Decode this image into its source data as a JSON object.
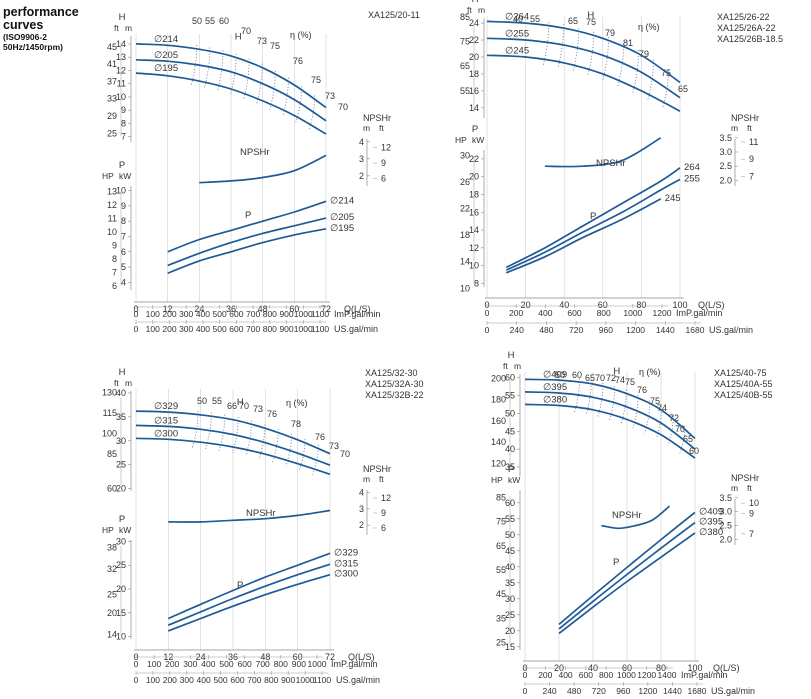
{
  "header": {
    "title_line1": "performance",
    "title_line2": "curves",
    "standard": "(ISO9906-2",
    "speed": "50Hz/1450rpm)"
  },
  "chart_data": [
    {
      "type": "line",
      "models": [
        "XA125/20-11"
      ],
      "x_axis": {
        "label": "Q(L/S)",
        "ticks": [
          "0",
          "12",
          "24",
          "36",
          "48",
          "60",
          "72"
        ],
        "imp_label": "ImP.gal/min",
        "imp_ticks": [
          "0",
          "100",
          "200",
          "300",
          "400",
          "500",
          "600",
          "700",
          "800",
          "900",
          "1000",
          "1100"
        ],
        "us_label": "US.gal/min",
        "us_ticks": [
          "0",
          "100",
          "200",
          "300",
          "400",
          "500",
          "600",
          "700",
          "800",
          "900",
          "1000",
          "1100"
        ]
      },
      "head_axis": {
        "label": "H",
        "unit_m": "m",
        "unit_ft": "ft",
        "m_ticks": [
          "14",
          "13",
          "12",
          "11",
          "10",
          "9",
          "8",
          "7"
        ],
        "ft_ticks": [
          "45",
          "41",
          "37",
          "33",
          "29",
          "25"
        ]
      },
      "npsh_axis": {
        "label": "NPSHr",
        "unit_m": "m",
        "unit_ft": "ft",
        "m_ticks": [
          "4",
          "3",
          "2"
        ],
        "ft_ticks": [
          "12",
          "9",
          "6"
        ]
      },
      "power_axis": {
        "label": "P",
        "unit_hp": "HP",
        "unit_kw": "kW",
        "kw_ticks": [
          "10",
          "9",
          "8",
          "7",
          "6",
          "5",
          "4"
        ],
        "hp_ticks": [
          "13",
          "12",
          "11",
          "10",
          "9",
          "8",
          "7",
          "6"
        ]
      },
      "efficiency_label": "η (%)",
      "efficiency_values": [
        "50",
        "55",
        "60",
        "70",
        "73",
        "75",
        "76",
        "75",
        "73",
        "70"
      ],
      "npsh_label": "NPSHr",
      "power_label": "P",
      "head_curves": [
        {
          "name": "∅214",
          "x": [
            0,
            12,
            24,
            36,
            48,
            60,
            72
          ],
          "y": [
            14.0,
            13.9,
            13.6,
            13.1,
            12.2,
            10.9,
            9.2
          ]
        },
        {
          "name": "∅205",
          "x": [
            0,
            12,
            24,
            36,
            48,
            60,
            72
          ],
          "y": [
            12.8,
            12.7,
            12.4,
            11.9,
            11.0,
            9.8,
            8.2
          ]
        },
        {
          "name": "∅195",
          "x": [
            0,
            12,
            24,
            36,
            48,
            60,
            72
          ],
          "y": [
            11.8,
            11.6,
            11.2,
            10.6,
            9.7,
            8.6,
            7.2
          ]
        }
      ],
      "npsh_curve": {
        "x": [
          24,
          36,
          48,
          60,
          72
        ],
        "y": [
          1.6,
          1.7,
          1.9,
          2.3,
          3.2
        ]
      },
      "power_curves": [
        {
          "name": "∅214",
          "x": [
            12,
            24,
            36,
            48,
            60,
            72
          ],
          "y": [
            6.0,
            6.8,
            7.4,
            8.0,
            8.6,
            9.3
          ]
        },
        {
          "name": "∅205",
          "x": [
            12,
            24,
            36,
            48,
            60,
            72
          ],
          "y": [
            5.1,
            5.9,
            6.6,
            7.2,
            7.7,
            8.2
          ]
        },
        {
          "name": "∅195",
          "x": [
            12,
            24,
            36,
            48,
            60,
            72
          ],
          "y": [
            4.6,
            5.4,
            6.0,
            6.6,
            7.1,
            7.5
          ]
        }
      ]
    },
    {
      "type": "line",
      "models": [
        "XA125/26-22",
        "XA125/26A-22",
        "XA125/26B-18.5"
      ],
      "x_axis": {
        "label": "Q(L/S)",
        "ticks": [
          "0",
          "20",
          "40",
          "60",
          "80",
          "100"
        ],
        "imp_label": "ImP.gal/min",
        "imp_ticks": [
          "0",
          "200",
          "400",
          "600",
          "800",
          "1000",
          "1200"
        ],
        "us_label": "US.gal/min",
        "us_ticks": [
          "0",
          "240",
          "480",
          "720",
          "960",
          "1200",
          "1440",
          "1680"
        ]
      },
      "head_axis": {
        "label": "H",
        "unit_m": "m",
        "unit_ft": "ft",
        "m_ticks": [
          "24",
          "22",
          "20",
          "18",
          "16",
          "14"
        ],
        "ft_ticks": [
          "85",
          "75",
          "65",
          "55"
        ]
      },
      "npsh_axis": {
        "label": "NPSHr",
        "unit_m": "m",
        "unit_ft": "ft",
        "m_ticks": [
          "3.5",
          "3.0",
          "2.5",
          "2.0"
        ],
        "ft_ticks": [
          "11",
          "9",
          "7"
        ]
      },
      "power_axis": {
        "label": "P",
        "unit_hp": "HP",
        "unit_kw": "kW",
        "kw_ticks": [
          "22",
          "20",
          "18",
          "16",
          "14",
          "12",
          "10",
          "8"
        ],
        "hp_ticks": [
          "30",
          "26",
          "22",
          "18",
          "14",
          "10"
        ]
      },
      "efficiency_label": "η (%)",
      "efficiency_values": [
        "40",
        "55",
        "65",
        "75",
        "79",
        "81",
        "79",
        "75",
        "65"
      ],
      "npsh_label": "NPSHr",
      "power_label": "P",
      "head_curves": [
        {
          "name": "∅264",
          "x": [
            0,
            20,
            40,
            60,
            80,
            100
          ],
          "y": [
            24.2,
            24.0,
            23.4,
            22.2,
            20.2,
            17.0
          ]
        },
        {
          "name": "∅255",
          "x": [
            0,
            20,
            40,
            60,
            80,
            100
          ],
          "y": [
            22.2,
            22.0,
            21.4,
            20.2,
            18.2,
            15.2
          ]
        },
        {
          "name": "∅245",
          "x": [
            0,
            20,
            40,
            60,
            80,
            100
          ],
          "y": [
            20.2,
            20.0,
            19.3,
            18.0,
            16.0,
            13.6
          ]
        }
      ],
      "npsh_curve": {
        "x": [
          30,
          50,
          70,
          90
        ],
        "y": [
          2.5,
          2.5,
          2.7,
          3.5
        ]
      },
      "power_curves": [
        {
          "name": "264",
          "x": [
            10,
            30,
            50,
            70,
            90,
            100
          ],
          "y": [
            9.8,
            12.0,
            14.5,
            17.0,
            19.5,
            21.0
          ]
        },
        {
          "name": "255",
          "x": [
            10,
            30,
            50,
            70,
            90,
            100
          ],
          "y": [
            9.5,
            11.5,
            13.8,
            16.0,
            18.5,
            19.7
          ]
        },
        {
          "name": "245",
          "x": [
            10,
            30,
            50,
            70,
            90
          ],
          "y": [
            9.2,
            11.0,
            13.2,
            15.2,
            17.5
          ]
        }
      ]
    },
    {
      "type": "line",
      "models": [
        "XA125/32-30",
        "XA125/32A-30",
        "XA125/32B-22"
      ],
      "x_axis": {
        "label": "Q(L/S)",
        "ticks": [
          "0",
          "12",
          "24",
          "36",
          "48",
          "60",
          "72"
        ],
        "imp_label": "ImP.gal/min",
        "imp_ticks": [
          "0",
          "100",
          "200",
          "300",
          "400",
          "500",
          "600",
          "700",
          "800",
          "900",
          "1000"
        ],
        "us_label": "US.gal/min",
        "us_ticks": [
          "0",
          "100",
          "200",
          "300",
          "400",
          "500",
          "600",
          "700",
          "800",
          "900",
          "1000",
          "1100"
        ]
      },
      "head_axis": {
        "label": "H",
        "unit_m": "m",
        "unit_ft": "ft",
        "m_ticks": [
          "40",
          "35",
          "30",
          "25",
          "20"
        ],
        "ft_ticks": [
          "130",
          "115",
          "100",
          "85",
          "60"
        ]
      },
      "npsh_axis": {
        "label": "NPSHr",
        "unit_m": "m",
        "unit_ft": "ft",
        "m_ticks": [
          "4",
          "3",
          "2"
        ],
        "ft_ticks": [
          "12",
          "9",
          "6"
        ]
      },
      "power_axis": {
        "label": "P",
        "unit_hp": "HP",
        "unit_kw": "kW",
        "kw_ticks": [
          "30",
          "25",
          "20",
          "15",
          "10"
        ],
        "hp_ticks": [
          "38",
          "32",
          "25",
          "20",
          "14"
        ]
      },
      "efficiency_label": "η (%)",
      "efficiency_values": [
        "50",
        "55",
        "66",
        "70",
        "73",
        "76",
        "78",
        "76",
        "73",
        "70"
      ],
      "npsh_label": "NPSHr",
      "power_label": "P",
      "head_curves": [
        {
          "name": "∅329",
          "x": [
            0,
            12,
            24,
            36,
            48,
            60,
            72
          ],
          "y": [
            36.2,
            36.0,
            35.4,
            34.4,
            32.6,
            30.2,
            27.3
          ]
        },
        {
          "name": "∅315",
          "x": [
            0,
            12,
            24,
            36,
            48,
            60,
            72
          ],
          "y": [
            33.2,
            33.0,
            32.4,
            31.3,
            29.6,
            27.4,
            24.9
          ]
        },
        {
          "name": "∅300",
          "x": [
            0,
            12,
            24,
            36,
            48,
            60,
            72
          ],
          "y": [
            30.5,
            30.3,
            29.7,
            28.7,
            27.2,
            25.2,
            23.0
          ]
        }
      ],
      "npsh_curve": {
        "x": [
          12,
          24,
          36,
          48,
          60,
          72
        ],
        "y": [
          2.2,
          2.2,
          2.3,
          2.4,
          2.6,
          2.9
        ]
      },
      "power_curves": [
        {
          "name": "∅329",
          "x": [
            12,
            24,
            36,
            48,
            60,
            72
          ],
          "y": [
            13.8,
            16.8,
            19.7,
            22.5,
            25.0,
            27.5
          ]
        },
        {
          "name": "∅315",
          "x": [
            12,
            24,
            36,
            48,
            60,
            72
          ],
          "y": [
            12.4,
            15.2,
            18.0,
            20.6,
            23.0,
            25.2
          ]
        },
        {
          "name": "∅300",
          "x": [
            12,
            24,
            36,
            48,
            60,
            72
          ],
          "y": [
            11.2,
            13.8,
            16.4,
            18.8,
            21.0,
            23.0
          ]
        }
      ]
    },
    {
      "type": "line",
      "models": [
        "XA125/40-75",
        "XA125/40A-55",
        "XA125/40B-55"
      ],
      "x_axis": {
        "label": "Q(L/S)",
        "ticks": [
          "0",
          "20",
          "40",
          "60",
          "80",
          "100"
        ],
        "imp_label": "ImP.gal/min",
        "imp_ticks": [
          "0",
          "200",
          "400",
          "600",
          "800",
          "1000",
          "1200",
          "1400"
        ],
        "us_label": "US.gal/min",
        "us_ticks": [
          "0",
          "240",
          "480",
          "720",
          "960",
          "1200",
          "1440",
          "1680"
        ]
      },
      "head_axis": {
        "label": "H",
        "unit_m": "m",
        "unit_ft": "ft",
        "m_ticks": [
          "60",
          "55",
          "50",
          "45",
          "40",
          "35"
        ],
        "ft_ticks": [
          "200",
          "180",
          "160",
          "140",
          "120"
        ]
      },
      "npsh_axis": {
        "label": "NPSHr",
        "unit_m": "m",
        "unit_ft": "ft",
        "m_ticks": [
          "3.5",
          "3.0",
          "2.5",
          "2.0"
        ],
        "ft_ticks": [
          "10",
          "9",
          "7"
        ]
      },
      "power_axis": {
        "label": "P",
        "unit_hp": "HP",
        "unit_kw": "kW",
        "kw_ticks": [
          "60",
          "55",
          "50",
          "45",
          "40",
          "35",
          "30",
          "25",
          "20",
          "15"
        ],
        "hp_ticks": [
          "85",
          "75",
          "65",
          "55",
          "45",
          "35",
          "25"
        ]
      },
      "efficiency_label": "η (%)",
      "efficiency_values": [
        "50",
        "60",
        "65",
        "70",
        "72",
        "74",
        "75",
        "76",
        "75",
        "74",
        "72",
        "70",
        "65",
        "60"
      ],
      "npsh_label": "NPSHr",
      "power_label": "P",
      "head_curves": [
        {
          "name": "∅409",
          "x": [
            0,
            20,
            40,
            60,
            80,
            100
          ],
          "y": [
            59.5,
            59.3,
            58.2,
            55.5,
            51.0,
            43.0
          ]
        },
        {
          "name": "∅395",
          "x": [
            0,
            20,
            40,
            60,
            80,
            100
          ],
          "y": [
            56.0,
            55.7,
            54.5,
            51.8,
            47.3,
            40.0
          ]
        },
        {
          "name": "∅380",
          "x": [
            0,
            20,
            40,
            60,
            80,
            100
          ],
          "y": [
            52.5,
            52.2,
            51.0,
            48.3,
            44.0,
            37.5
          ]
        }
      ],
      "npsh_curve": {
        "x": [
          45,
          55,
          65,
          75,
          85
        ],
        "y": [
          2.5,
          2.4,
          2.5,
          2.7,
          3.2
        ]
      },
      "power_curves": [
        {
          "name": "∅409",
          "x": [
            20,
            40,
            60,
            80,
            100
          ],
          "y": [
            22.0,
            31.0,
            39.8,
            48.5,
            57.0
          ]
        },
        {
          "name": "∅395",
          "x": [
            20,
            40,
            60,
            80,
            100
          ],
          "y": [
            20.6,
            29.2,
            37.6,
            45.8,
            53.8
          ]
        },
        {
          "name": "∅380",
          "x": [
            20,
            40,
            60,
            80,
            100
          ],
          "y": [
            19.2,
            27.4,
            35.4,
            43.0,
            50.6
          ]
        }
      ]
    }
  ]
}
